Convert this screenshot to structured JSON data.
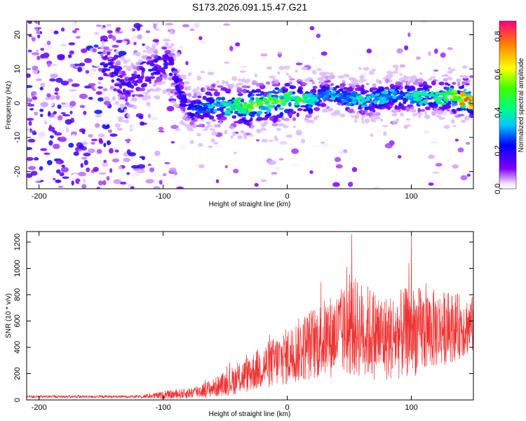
{
  "title": "S173.2026.091.15.47.G21",
  "chart_data": [
    {
      "type": "heatmap",
      "xlabel": "Height of straight line (km)",
      "ylabel": "Frequency (Hz)",
      "xlim": [
        -210,
        150
      ],
      "ylim": [
        -25,
        24
      ],
      "xticks": [
        -200,
        -100,
        0,
        100
      ],
      "yticks": [
        -20,
        -10,
        0,
        10,
        20
      ],
      "ridge": [
        {
          "x": -145,
          "y": 11,
          "v": 0.32
        },
        {
          "x": -130,
          "y": 4,
          "v": 0.25
        },
        {
          "x": -100,
          "y": 12,
          "v": 0.3
        },
        {
          "x": -93,
          "y": 10,
          "v": 0.25
        },
        {
          "x": -85,
          "y": 2,
          "v": 0.22
        },
        {
          "x": -80,
          "y": -1,
          "v": 0.25
        },
        {
          "x": -70,
          "y": -2,
          "v": 0.3
        },
        {
          "x": -60,
          "y": 0,
          "v": 0.4
        },
        {
          "x": -50,
          "y": -1,
          "v": 0.45
        },
        {
          "x": -40,
          "y": -1,
          "v": 0.5
        },
        {
          "x": -30,
          "y": -1,
          "v": 0.62
        },
        {
          "x": -20,
          "y": 0,
          "v": 0.6
        },
        {
          "x": -10,
          "y": 0,
          "v": 0.58
        },
        {
          "x": 0,
          "y": 1,
          "v": 0.55
        },
        {
          "x": 10,
          "y": 1,
          "v": 0.5
        },
        {
          "x": 20,
          "y": 1,
          "v": 0.45
        },
        {
          "x": 30,
          "y": 3,
          "v": 0.35
        },
        {
          "x": 40,
          "y": 3,
          "v": 0.4
        },
        {
          "x": 50,
          "y": 1,
          "v": 0.35
        },
        {
          "x": 60,
          "y": 1,
          "v": 0.45
        },
        {
          "x": 70,
          "y": 1,
          "v": 0.4
        },
        {
          "x": 80,
          "y": 2,
          "v": 0.38
        },
        {
          "x": 90,
          "y": 2,
          "v": 0.35
        },
        {
          "x": 100,
          "y": 2,
          "v": 0.42
        },
        {
          "x": 110,
          "y": 2,
          "v": 0.45
        },
        {
          "x": 120,
          "y": 2,
          "v": 0.5
        },
        {
          "x": 130,
          "y": 2,
          "v": 0.55
        },
        {
          "x": 140,
          "y": 1,
          "v": 0.75
        },
        {
          "x": 147,
          "y": 1,
          "v": 0.88
        }
      ],
      "colorbar": {
        "label": "Normalized spectral amplitude",
        "range": [
          0,
          0.88
        ],
        "ticks": [
          "0.0",
          "0.2",
          "0.4",
          "0.6",
          "0.8"
        ]
      }
    },
    {
      "type": "line",
      "xlabel": "Height of straight line (km)",
      "ylabel": "SNR (10 * v/v)",
      "xlim": [
        -210,
        150
      ],
      "ylim": [
        0,
        1280
      ],
      "xticks": [
        -200,
        -100,
        0,
        100
      ],
      "yticks": [
        0,
        200,
        400,
        600,
        800,
        1000,
        1200
      ],
      "envelope": [
        {
          "x": -210,
          "mean": 25,
          "amp": 10
        },
        {
          "x": -120,
          "mean": 25,
          "amp": 10
        },
        {
          "x": -100,
          "mean": 35,
          "amp": 30
        },
        {
          "x": -80,
          "mean": 50,
          "amp": 40
        },
        {
          "x": -60,
          "mean": 90,
          "amp": 70
        },
        {
          "x": -40,
          "mean": 160,
          "amp": 120
        },
        {
          "x": -20,
          "mean": 250,
          "amp": 170
        },
        {
          "x": 0,
          "mean": 330,
          "amp": 220
        },
        {
          "x": 20,
          "mean": 430,
          "amp": 280
        },
        {
          "x": 40,
          "mean": 500,
          "amp": 330
        },
        {
          "x": 55,
          "mean": 550,
          "amp": 380
        },
        {
          "x": 80,
          "mean": 470,
          "amp": 330
        },
        {
          "x": 100,
          "mean": 520,
          "amp": 350
        },
        {
          "x": 120,
          "mean": 540,
          "amp": 300
        },
        {
          "x": 150,
          "mean": 570,
          "amp": 220
        }
      ],
      "peaks": [
        {
          "x": 52,
          "y": 1260
        },
        {
          "x": 100,
          "y": 1250
        },
        {
          "x": 48,
          "y": 1010
        },
        {
          "x": 98,
          "y": 1040
        }
      ]
    }
  ]
}
